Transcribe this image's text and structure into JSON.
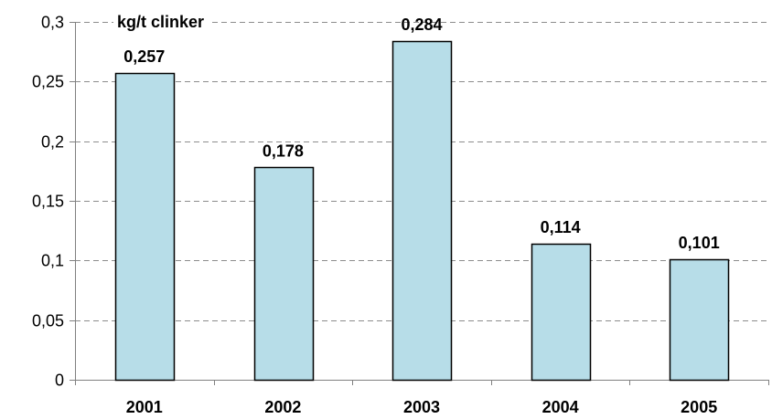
{
  "chart_data": {
    "type": "bar",
    "categories": [
      "2001",
      "2002",
      "2003",
      "2004",
      "2005"
    ],
    "values": [
      0.257,
      0.178,
      0.284,
      0.114,
      0.101
    ],
    "data_labels": [
      "0,257",
      "0,178",
      "0,284",
      "0,114",
      "0,101"
    ],
    "title": "",
    "xlabel": "",
    "ylabel": "",
    "unit_label": "kg/t clinker",
    "ylim": [
      0,
      0.3
    ],
    "yticks": [
      0,
      0.05,
      0.1,
      0.15,
      0.2,
      0.25,
      0.3
    ],
    "ytick_labels": [
      "0",
      "0,05",
      "0,1",
      "0,15",
      "0,2",
      "0,25",
      "0,3"
    ],
    "grid": true,
    "legend": "none",
    "colors": {
      "bar_fill": "#b7dde8",
      "bar_stroke": "#000000",
      "grid": "#8c8c8c",
      "axis": "#808080"
    }
  }
}
